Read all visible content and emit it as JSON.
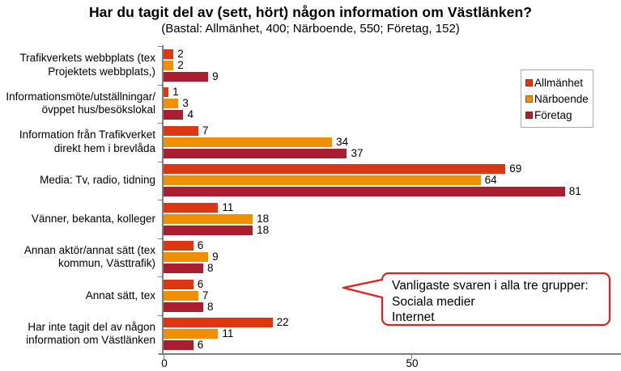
{
  "title": "Har du tagit del av (sett, hört) någon information om Västlänken?",
  "subtitle": "(Bastal: Allmänhet, 400; Närboende, 550; Företag, 152)",
  "chart_data": {
    "type": "bar",
    "orientation": "horizontal",
    "title": "Har du tagit del av (sett, hört) någon information om Västlänken?",
    "subtitle": "(Bastal: Allmänhet, 400; Närboende, 550; Företag, 152)",
    "categories": [
      "Trafikverkets webbplats (tex\nProjektets webbplats,)",
      "Informationsmöte/utställningar/\növppet hus/besökslokal",
      "Information från Trafikverket\ndirekt hem i brevlåda",
      "Media: Tv, radio, tidning",
      "Vänner, bekanta, kolleger",
      "Annan aktör/annat sätt (tex\nkommun, Västtrafik)",
      "Annat sätt, tex",
      "Har inte tagit del av någon\ninformation om Västlänken"
    ],
    "series": [
      {
        "key": "allmanhet",
        "name": "Allmänhet",
        "color": "#db3713",
        "values": [
          2,
          1,
          7,
          69,
          11,
          6,
          6,
          22
        ]
      },
      {
        "key": "narboende",
        "name": "Närboende",
        "color": "#ee8f05",
        "values": [
          2,
          3,
          34,
          64,
          18,
          9,
          7,
          11
        ]
      },
      {
        "key": "foretag",
        "name": "Företag",
        "color": "#a91e31",
        "values": [
          9,
          4,
          37,
          81,
          18,
          8,
          8,
          6
        ]
      }
    ],
    "xlabel": "",
    "ylabel": "",
    "x_ticks": [
      0,
      50
    ],
    "xlim": [
      0,
      92
    ],
    "grid": false,
    "legend_position": "top-right",
    "annotation": "Vanligaste svaren i alla tre grupper:\nSociala medier\nInternet"
  },
  "callout": {
    "lines": [
      "Vanligaste svaren i alla tre grupper:",
      "Sociala medier",
      "Internet"
    ],
    "border_color": "#e02121"
  },
  "axis_color": "#7f7f7f"
}
